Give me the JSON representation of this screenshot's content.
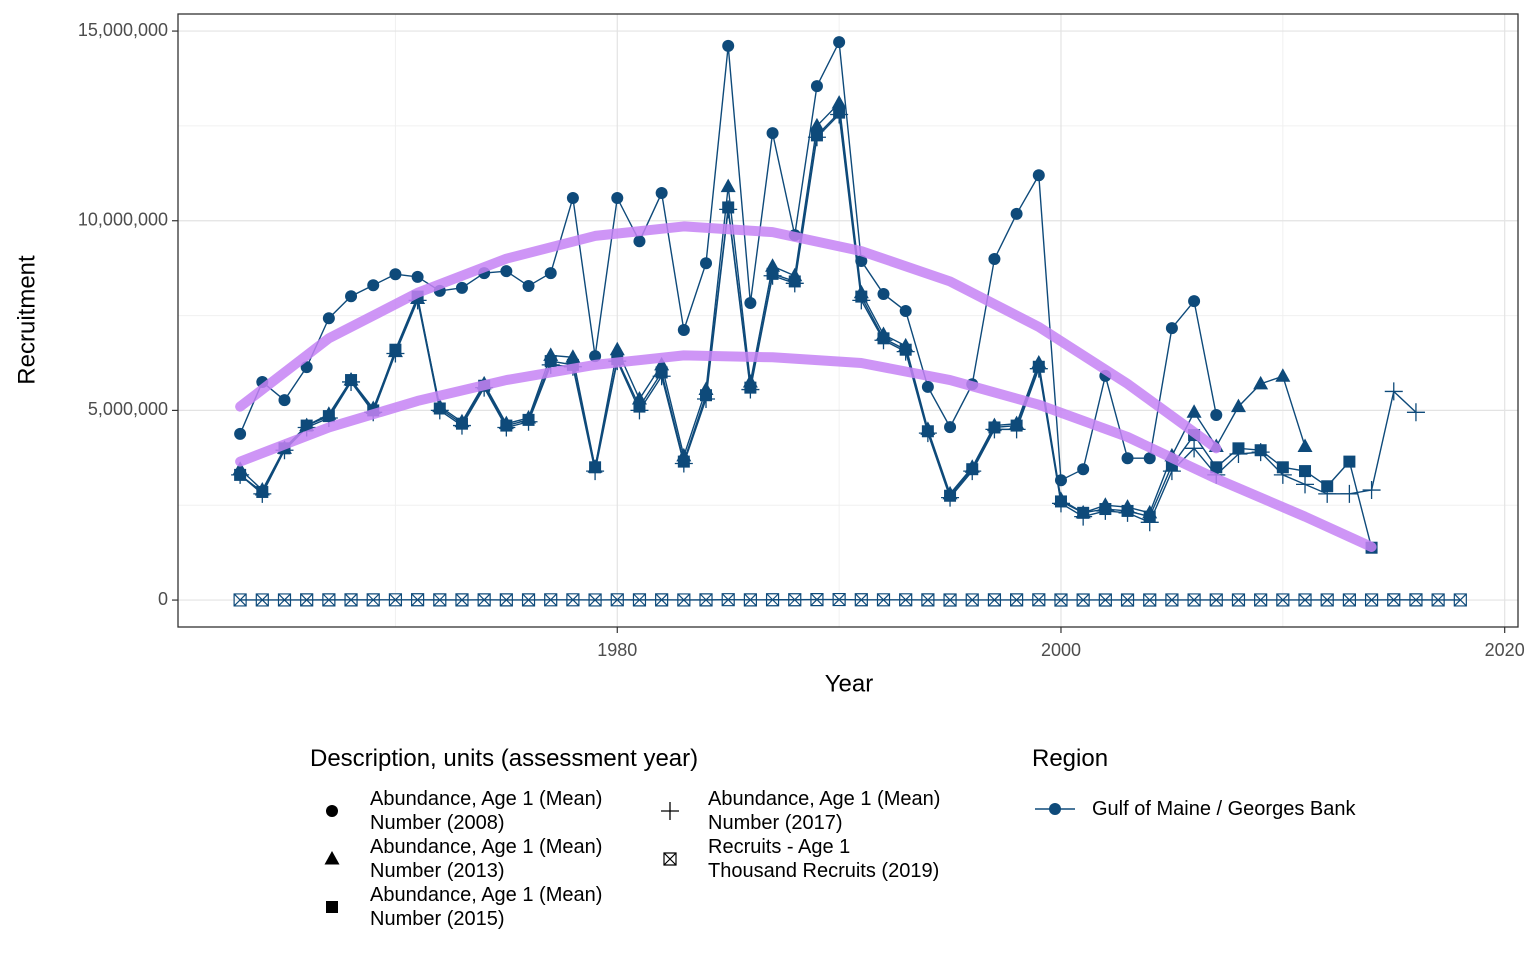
{
  "chart_data": {
    "type": "line",
    "x_label": "Year",
    "y_label": "Recruitment",
    "xlim": [
      1960.2,
      2020.6
    ],
    "ylim": [
      -710000,
      15450000
    ],
    "xticks": [
      1980,
      2000,
      2020
    ],
    "yticks": [
      0,
      {
        "value": 5000000,
        "label": "5,000,000"
      },
      {
        "value": 10000000,
        "label": "10,000,000"
      },
      {
        "value": 15000000,
        "label": "15,000,000"
      }
    ],
    "grid": true,
    "legend_title": "Description, units (assessment year)",
    "region_legend": {
      "title": "Region",
      "label": "Gulf of Maine / Georges Bank",
      "color": "#0e4a7a"
    },
    "series": [
      {
        "name": "Abundance, Age 1 (Mean)\nNumber (2008)",
        "marker": "circle",
        "color": "#0e4a7a",
        "x": [
          1963,
          1964,
          1965,
          1966,
          1967,
          1968,
          1969,
          1970,
          1971,
          1972,
          1973,
          1974,
          1975,
          1976,
          1977,
          1978,
          1979,
          1980,
          1981,
          1982,
          1983,
          1984,
          1985,
          1986,
          1987,
          1988,
          1989,
          1990,
          1991,
          1992,
          1993,
          1994,
          1995,
          1996,
          1997,
          1998,
          1999,
          2000,
          2001,
          2002,
          2003,
          2004,
          2005,
          2006,
          2007
        ],
        "values": [
          4380000,
          5750000,
          5270000,
          6140000,
          7430000,
          8010000,
          8300000,
          8590000,
          8520000,
          8150000,
          8230000,
          8620000,
          8670000,
          8280000,
          8620000,
          10600000,
          6430000,
          10600000,
          9460000,
          10730000,
          7120000,
          8880000,
          14610000,
          7830000,
          12310000,
          9620000,
          13550000,
          14710000,
          8940000,
          8070000,
          7620000,
          5620000,
          4560000,
          5690000,
          8990000,
          10180000,
          11200000,
          3160000,
          3450000,
          5910000,
          3740000,
          3740000,
          7170000,
          7880000,
          4880000
        ]
      },
      {
        "name": "Abundance, Age 1 (Mean)\nNumber (2013)",
        "marker": "triangle",
        "color": "#0e4a7a",
        "x": [
          1963,
          1964,
          1965,
          1966,
          1967,
          1968,
          1969,
          1970,
          1971,
          1972,
          1973,
          1974,
          1975,
          1976,
          1977,
          1978,
          1979,
          1980,
          1981,
          1982,
          1983,
          1984,
          1985,
          1986,
          1987,
          1988,
          1989,
          1990,
          1991,
          1992,
          1993,
          1994,
          1995,
          1996,
          1997,
          1998,
          1999,
          2000,
          2001,
          2002,
          2003,
          2004,
          2005,
          2006,
          2007,
          2008,
          2009,
          2010,
          2011
        ],
        "values": [
          3450000,
          2900000,
          4000000,
          4600000,
          4900000,
          5800000,
          5050000,
          6550000,
          7950000,
          5100000,
          4700000,
          5700000,
          4650000,
          4800000,
          6450000,
          6400000,
          3500000,
          6600000,
          5300000,
          6200000,
          3800000,
          5550000,
          10900000,
          5750000,
          8800000,
          8550000,
          12500000,
          13100000,
          8100000,
          7000000,
          6700000,
          4500000,
          2800000,
          3500000,
          4600000,
          4650000,
          6250000,
          2650000,
          2300000,
          2500000,
          2450000,
          2300000,
          3800000,
          4950000,
          4050000,
          5100000,
          5700000,
          5900000,
          4050000
        ]
      },
      {
        "name": "Abundance, Age 1 (Mean)\nNumber (2015)",
        "marker": "square",
        "color": "#0e4a7a",
        "x": [
          1963,
          1964,
          1965,
          1966,
          1967,
          1968,
          1969,
          1970,
          1971,
          1972,
          1973,
          1974,
          1975,
          1976,
          1977,
          1978,
          1979,
          1980,
          1981,
          1982,
          1983,
          1984,
          1985,
          1986,
          1987,
          1988,
          1989,
          1990,
          1991,
          1992,
          1993,
          1994,
          1995,
          1996,
          1997,
          1998,
          1999,
          2000,
          2001,
          2002,
          2003,
          2004,
          2005,
          2006,
          2007,
          2008,
          2009,
          2010,
          2011,
          2012,
          2013,
          2014
        ],
        "values": [
          3300000,
          2850000,
          4000000,
          4600000,
          4850000,
          5800000,
          5000000,
          6600000,
          8000000,
          5050000,
          4650000,
          5650000,
          4600000,
          4750000,
          6300000,
          6200000,
          3500000,
          6350000,
          5100000,
          6000000,
          3650000,
          5400000,
          10350000,
          5600000,
          8600000,
          8400000,
          12250000,
          12850000,
          8000000,
          6900000,
          6600000,
          4450000,
          2750000,
          3450000,
          4550000,
          4600000,
          6150000,
          2600000,
          2300000,
          2400000,
          2350000,
          2200000,
          3550000,
          4350000,
          3500000,
          4000000,
          3950000,
          3500000,
          3400000,
          3000000,
          3650000,
          1380000
        ]
      },
      {
        "name": "Abundance, Age 1 (Mean)\nNumber (2017)",
        "marker": "plus",
        "color": "#0e4a7a",
        "x": [
          1963,
          1964,
          1965,
          1966,
          1967,
          1968,
          1969,
          1970,
          1971,
          1972,
          1973,
          1974,
          1975,
          1976,
          1977,
          1978,
          1979,
          1980,
          1981,
          1982,
          1983,
          1984,
          1985,
          1986,
          1987,
          1988,
          1989,
          1990,
          1991,
          1992,
          1993,
          1994,
          1995,
          1996,
          1997,
          1998,
          1999,
          2000,
          2001,
          2002,
          2003,
          2004,
          2005,
          2006,
          2007,
          2008,
          2009,
          2010,
          2011,
          2012,
          2013,
          2014,
          2015,
          2016
        ],
        "values": [
          3300000,
          2800000,
          3950000,
          4550000,
          4800000,
          5750000,
          4950000,
          6500000,
          7900000,
          5000000,
          4600000,
          5600000,
          4550000,
          4700000,
          6200000,
          6150000,
          3400000,
          6300000,
          5000000,
          5900000,
          3600000,
          5300000,
          10300000,
          5550000,
          8550000,
          8350000,
          12200000,
          12800000,
          7900000,
          6850000,
          6550000,
          4400000,
          2700000,
          3400000,
          4500000,
          4500000,
          6100000,
          2550000,
          2200000,
          2350000,
          2300000,
          2050000,
          3400000,
          4000000,
          3300000,
          3850000,
          3900000,
          3300000,
          3050000,
          2800000,
          2800000,
          2900000,
          5500000,
          4950000
        ]
      },
      {
        "name": "Recruits - Age 1\nThousand Recruits (2019)",
        "marker": "boxx",
        "color": "#0e4a7a",
        "x": [
          1963,
          1964,
          1965,
          1966,
          1967,
          1968,
          1969,
          1970,
          1971,
          1972,
          1973,
          1974,
          1975,
          1976,
          1977,
          1978,
          1979,
          1980,
          1981,
          1982,
          1983,
          1984,
          1985,
          1986,
          1987,
          1988,
          1989,
          1990,
          1991,
          1992,
          1993,
          1994,
          1995,
          1996,
          1997,
          1998,
          1999,
          2000,
          2001,
          2002,
          2003,
          2004,
          2005,
          2006,
          2007,
          2008,
          2009,
          2010,
          2011,
          2012,
          2013,
          2014,
          2015,
          2016,
          2017,
          2018
        ],
        "values": [
          3300,
          2800,
          3950,
          4550,
          4800,
          5750,
          4950,
          6500,
          7900,
          5000,
          4600,
          5600,
          4550,
          4700,
          6200,
          6150,
          3400,
          6300,
          5000,
          5900,
          3600,
          5300,
          10300,
          5550,
          8550,
          8350,
          12200,
          12800,
          7900,
          6850,
          6550,
          4400,
          2700,
          3400,
          4500,
          4500,
          6100,
          2550,
          2200,
          2350,
          2300,
          2050,
          3400,
          4000,
          3300,
          3850,
          3900,
          3300,
          3050,
          2800,
          2800,
          2900,
          5500,
          4950,
          4000,
          3000
        ]
      }
    ],
    "trends": [
      {
        "color": "#c583f5",
        "x": [
          1963,
          1967,
          1971,
          1975,
          1979,
          1983,
          1987,
          1991,
          1995,
          1999,
          2003,
          2007
        ],
        "values": [
          5100000,
          6900000,
          8100000,
          9000000,
          9600000,
          9850000,
          9700000,
          9200000,
          8400000,
          7200000,
          5700000,
          4000000
        ]
      },
      {
        "color": "#c583f5",
        "x": [
          1963,
          1967,
          1971,
          1975,
          1979,
          1983,
          1987,
          1991,
          1995,
          1999,
          2003,
          2007,
          2011,
          2014
        ],
        "values": [
          3650000,
          4550000,
          5250000,
          5800000,
          6200000,
          6450000,
          6400000,
          6250000,
          5800000,
          5150000,
          4300000,
          3200000,
          2200000,
          1400000
        ]
      }
    ]
  }
}
